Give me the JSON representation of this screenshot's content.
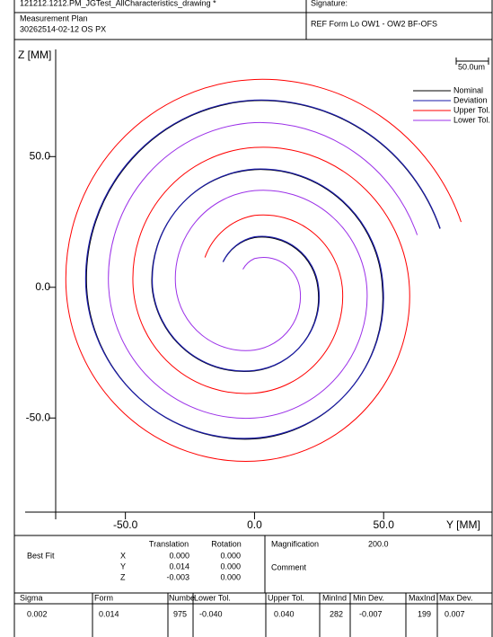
{
  "header": {
    "file": "121212.1212.PM_JGTest_AllCharacteristics_drawing *",
    "signature": "Signature:",
    "plan_label": "Measurement Plan",
    "plan_id": "30262514-02-12 OS  PX",
    "reference": "REF Form Lo OW1 - OW2 BF-OFS"
  },
  "chart_data": {
    "type": "line",
    "xlabel": "Y [MM]",
    "ylabel": "Z [MM]",
    "scale_label": "50.0um",
    "xlim": [
      -77,
      92
    ],
    "ylim": [
      -86,
      91
    ],
    "xticks": [
      {
        "value": -50,
        "label": "-50.0"
      },
      {
        "value": 0,
        "label": "0.0"
      },
      {
        "value": 50,
        "label": "50.0"
      }
    ],
    "yticks": [
      {
        "value": -50,
        "label": "-50.0"
      },
      {
        "value": 0,
        "label": "0.0"
      },
      {
        "value": 50,
        "label": "50.0"
      }
    ],
    "legend": "upper right",
    "series": [
      {
        "name": "Nominal",
        "color": "#000000",
        "x": [
          -12.2,
          0,
          24.5,
          0,
          -39.7,
          0,
          49.5,
          0,
          -65,
          0,
          71.8
        ],
        "y": [
          9.7,
          19,
          0,
          -32,
          0,
          45,
          0,
          -58,
          0,
          71.4,
          22.4
        ]
      },
      {
        "name": "Deviation",
        "color": "#1a1aa8",
        "x": [
          -12.2,
          0,
          24.8,
          0,
          -39.5,
          0,
          49.8,
          0,
          -65.3,
          0,
          71.9
        ],
        "y": [
          9.7,
          19.3,
          0,
          -31.8,
          0,
          45.2,
          0,
          -57.7,
          0,
          71.6,
          22.5
        ]
      },
      {
        "name": "Upper Tol.",
        "color": "#ff0000",
        "x": [
          -19.2,
          0,
          34,
          0,
          -47,
          0,
          60,
          0,
          -73,
          0,
          80
        ],
        "y": [
          11.4,
          27.5,
          0,
          -40.5,
          0,
          53.5,
          0,
          -66.5,
          0,
          79.5,
          25
        ]
      },
      {
        "name": "Lower Tol.",
        "color": "#9b30e8",
        "x": [
          -4.5,
          0,
          17.5,
          0,
          -30.5,
          0,
          43.5,
          0,
          -56.5,
          0,
          63
        ],
        "y": [
          6.9,
          11,
          0,
          -24,
          0,
          37,
          0,
          -50,
          0,
          63,
          20
        ]
      }
    ]
  },
  "fit": {
    "label": "Best Fit",
    "translation": "Translation",
    "rotation": "Rotation",
    "rows": [
      [
        "X",
        "0.000",
        "0.000"
      ],
      [
        "Y",
        "0.014",
        "0.000"
      ],
      [
        "Z",
        "-0.003",
        "0.000"
      ]
    ],
    "magnification_label": "Magnification",
    "magnification": "200.0",
    "comment": "Comment"
  },
  "stats": {
    "headers": [
      "Sigma",
      "Form",
      "Numbe",
      "Lower Tol.",
      "Upper Tol.",
      "MinInd",
      "Min Dev.",
      "MaxInd",
      "Max Dev."
    ],
    "values": [
      "0.002",
      "0.014",
      "975",
      "-0.040",
      "0.040",
      "282",
      "-0.007",
      "199",
      "0.007"
    ]
  }
}
